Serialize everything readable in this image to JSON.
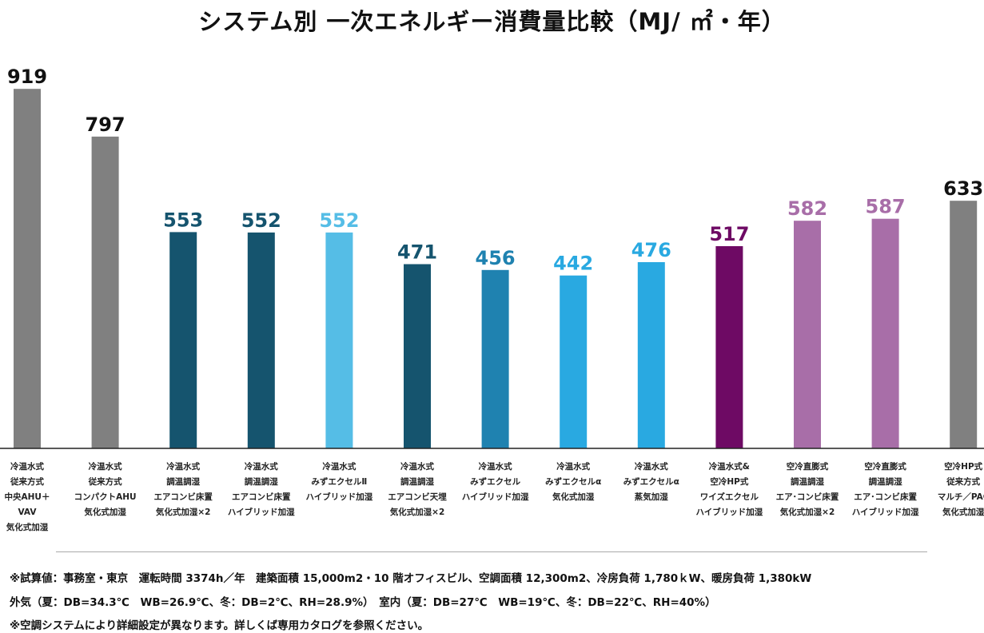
{
  "title": "システム別 一次エネルギー消費量比較（MJ/ ㎡・年）",
  "chart_data": {
    "type": "bar",
    "title": "システム別 一次エネルギー消費量比較（MJ/ ㎡・年）",
    "ylim": [
      0,
      1000
    ],
    "grid": false,
    "legend": "none",
    "categories": [
      [
        "冷温水式",
        "従来方式",
        "中央AHU＋",
        "VAV",
        "気化式加湿"
      ],
      [
        "冷温水式",
        "従来方式",
        "コンパクトAHU",
        "気化式加湿"
      ],
      [
        "冷温水式",
        "調温調湿",
        "エアコンビ床置",
        "気化式加湿×2"
      ],
      [
        "冷温水式",
        "調温調湿",
        "エアコンビ床置",
        "ハイブリッド加湿"
      ],
      [
        "冷温水式",
        "みずエクセルⅡ",
        "ハイブリッド加湿"
      ],
      [
        "冷温水式",
        "調温調湿",
        "エアコンビ天埋",
        "気化式加湿×2"
      ],
      [
        "冷温水式",
        "みずエクセル",
        "ハイブリッド加湿"
      ],
      [
        "冷温水式",
        "みずエクセルα",
        "気化式加湿"
      ],
      [
        "冷温水式",
        "みずエクセルα",
        "蒸気加湿"
      ],
      [
        "冷温水式&",
        "空冷HP式",
        "ワイズエクセル",
        "ハイブリッド加湿"
      ],
      [
        "空冷直膨式",
        "調温調湿",
        "エア･コンビ床置",
        "気化式加湿×2"
      ],
      [
        "空冷直膨式",
        "調温調湿",
        "エア･コンビ床置",
        "ハイブリッド加湿"
      ],
      [
        "空冷HP式",
        "従来方式",
        "マルチ／PAC",
        "気化式加湿"
      ]
    ],
    "values": [
      919,
      797,
      553,
      552,
      552,
      471,
      456,
      442,
      476,
      517,
      582,
      587,
      633
    ],
    "colors": [
      "#808080",
      "#808080",
      "#15546e",
      "#15546e",
      "#55bde6",
      "#15546e",
      "#1f82b0",
      "#29a9e1",
      "#29a9e1",
      "#6e0a64",
      "#a86ea8",
      "#a86ea8",
      "#808080"
    ],
    "label_colors": [
      "#111111",
      "#111111",
      "#15546e",
      "#15546e",
      "#55bde6",
      "#15546e",
      "#1f82b0",
      "#29a9e1",
      "#29a9e1",
      "#6e0a64",
      "#a86ea8",
      "#a86ea8",
      "#111111"
    ]
  },
  "notes": [
    "※試算値：事務室・東京　運転時間 3374h／年　建築面積 15,000m2・10 階オフィスビル、空調面積 12,300m2、冷房負荷 1,780ｋW、暖房負荷 1,380kW",
    "外気（夏：DB=34.3℃　WB=26.9℃、冬：DB=2℃、RH=28.9%）　室内（夏：DB=27℃　WB=19℃、冬：DB=22℃、RH=40%）",
    "※空調システムにより詳細設定が異なります。詳しくば専用カタログを参照ください。"
  ]
}
